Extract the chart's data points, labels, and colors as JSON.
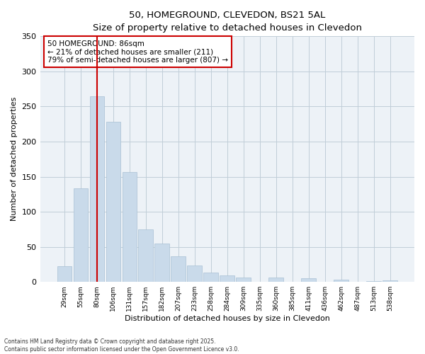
{
  "title_line1": "50, HOMEGROUND, CLEVEDON, BS21 5AL",
  "title_line2": "Size of property relative to detached houses in Clevedon",
  "xlabel": "Distribution of detached houses by size in Clevedon",
  "ylabel": "Number of detached properties",
  "categories": [
    "29sqm",
    "55sqm",
    "80sqm",
    "106sqm",
    "131sqm",
    "157sqm",
    "182sqm",
    "207sqm",
    "233sqm",
    "258sqm",
    "284sqm",
    "309sqm",
    "335sqm",
    "360sqm",
    "385sqm",
    "411sqm",
    "436sqm",
    "462sqm",
    "487sqm",
    "513sqm",
    "538sqm"
  ],
  "values": [
    22,
    133,
    265,
    228,
    157,
    75,
    55,
    37,
    23,
    13,
    9,
    6,
    0,
    6,
    0,
    5,
    0,
    3,
    0,
    1,
    2
  ],
  "bar_color": "#c9daea",
  "bar_edge_color": "#a8c0d4",
  "vline_x": 2.0,
  "vline_color": "#cc0000",
  "annotation_text": "50 HOMEGROUND: 86sqm\n← 21% of detached houses are smaller (211)\n79% of semi-detached houses are larger (807) →",
  "annotation_box_color": "#cc0000",
  "ylim": [
    0,
    350
  ],
  "yticks": [
    0,
    50,
    100,
    150,
    200,
    250,
    300,
    350
  ],
  "grid_color": "#c0cdd8",
  "background_color": "#edf2f7",
  "footer_line1": "Contains HM Land Registry data © Crown copyright and database right 2025.",
  "footer_line2": "Contains public sector information licensed under the Open Government Licence v3.0."
}
